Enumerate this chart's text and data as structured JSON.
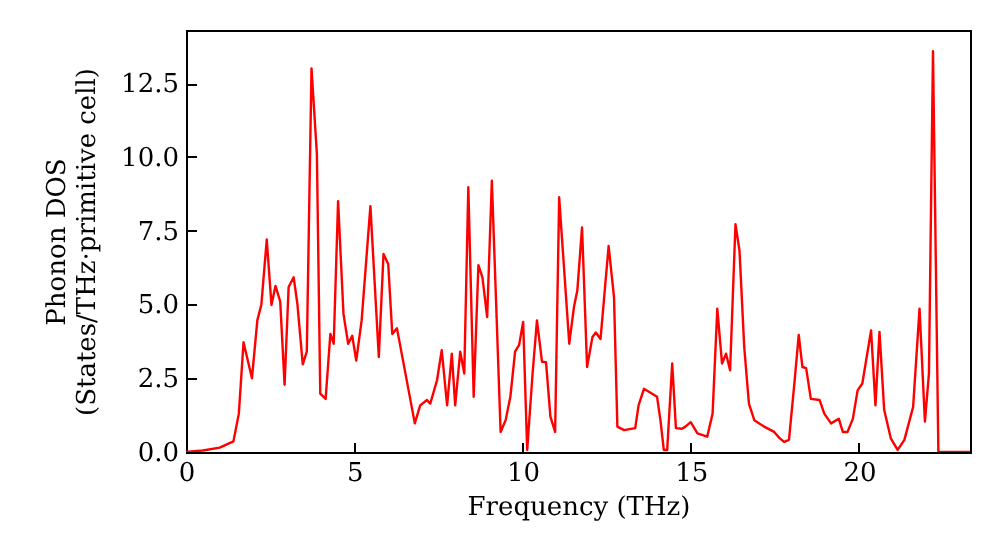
{
  "chart_data": {
    "type": "line",
    "xlabel": "Frequency (THz)",
    "ylabel": "Phonon DOS\n(States/THz·primitive cell)",
    "xlim": [
      0,
      23.3
    ],
    "ylim": [
      0,
      14.3
    ],
    "xticks": [
      0,
      5,
      10,
      15,
      20
    ],
    "yticks": [
      {
        "value": 0,
        "label": "0.0"
      },
      {
        "value": 2.5,
        "label": "2.5"
      },
      {
        "value": 5,
        "label": "5.0"
      },
      {
        "value": 7.5,
        "label": "7.5"
      },
      {
        "value": 10,
        "label": "10.0"
      },
      {
        "value": 12.5,
        "label": "12.5"
      }
    ],
    "grid": false,
    "series": [
      {
        "color": "#ff0000",
        "x": [
          0,
          0.5,
          1.0,
          1.41,
          1.57,
          1.71,
          1.96,
          2.12,
          2.24,
          2.4,
          2.54,
          2.66,
          2.8,
          2.93,
          3.05,
          3.2,
          3.31,
          3.47,
          3.59,
          3.73,
          3.89,
          3.99,
          4.15,
          4.29,
          4.39,
          4.52,
          4.68,
          4.82,
          4.94,
          5.06,
          5.22,
          5.48,
          5.73,
          5.87,
          6.01,
          6.13,
          6.27,
          6.8,
          6.96,
          7.16,
          7.26,
          7.46,
          7.6,
          7.76,
          7.9,
          8.0,
          8.15,
          8.27,
          8.39,
          8.55,
          8.69,
          8.81,
          8.95,
          9.09,
          9.35,
          9.5,
          9.64,
          9.78,
          9.9,
          10.02,
          10.14,
          10.3,
          10.43,
          10.58,
          10.7,
          10.83,
          10.97,
          11.09,
          11.39,
          11.53,
          11.63,
          11.77,
          11.92,
          12.08,
          12.18,
          12.32,
          12.56,
          12.72,
          12.82,
          13.02,
          13.35,
          13.45,
          13.61,
          14.0,
          14.1,
          14.2,
          14.3,
          14.45,
          14.56,
          14.74,
          14.84,
          15.0,
          15.2,
          15.49,
          15.65,
          15.79,
          15.93,
          16.05,
          16.17,
          16.33,
          16.45,
          16.59,
          16.73,
          16.89,
          17.18,
          17.48,
          17.64,
          17.78,
          17.92,
          18.08,
          18.21,
          18.32,
          18.43,
          18.57,
          18.83,
          18.97,
          19.17,
          19.4,
          19.52,
          19.66,
          19.82,
          19.96,
          20.1,
          20.36,
          20.49,
          20.61,
          20.75,
          20.95,
          21.15,
          21.35,
          21.61,
          21.8,
          21.96,
          22.08,
          22.2,
          22.36,
          23.3
        ],
        "values": [
          0,
          0.05,
          0.15,
          0.36,
          1.3,
          3.72,
          2.5,
          4.46,
          5.0,
          7.2,
          4.98,
          5.63,
          5.1,
          2.28,
          5.59,
          5.92,
          5.02,
          2.97,
          3.4,
          13.0,
          10.1,
          1.98,
          1.8,
          4.0,
          3.67,
          8.5,
          4.68,
          3.67,
          3.94,
          3.1,
          4.46,
          8.33,
          3.22,
          6.71,
          6.37,
          4.0,
          4.19,
          0.97,
          1.58,
          1.76,
          1.64,
          2.43,
          3.45,
          1.58,
          3.33,
          1.58,
          3.4,
          2.66,
          8.97,
          1.87,
          6.33,
          5.92,
          4.57,
          9.19,
          0.68,
          1.08,
          1.87,
          3.4,
          3.63,
          4.41,
          0.07,
          2.66,
          4.46,
          3.06,
          3.04,
          1.2,
          0.68,
          8.63,
          3.67,
          4.91,
          5.47,
          7.61,
          2.88,
          3.9,
          4.05,
          3.83,
          6.98,
          5.25,
          0.86,
          0.74,
          0.81,
          1.58,
          2.14,
          1.87,
          1.08,
          0.07,
          0.07,
          3.0,
          0.81,
          0.79,
          0.86,
          1.01,
          0.63,
          0.52,
          1.3,
          4.86,
          3.0,
          3.33,
          2.77,
          7.72,
          6.82,
          3.56,
          1.64,
          1.08,
          0.86,
          0.68,
          0.47,
          0.34,
          0.41,
          2.32,
          3.97,
          2.88,
          2.84,
          1.8,
          1.76,
          1.3,
          0.97,
          1.13,
          0.68,
          0.68,
          1.13,
          2.09,
          2.32,
          4.12,
          1.58,
          4.07,
          1.42,
          0.45,
          0.07,
          0.41,
          1.53,
          4.86,
          1.03,
          2.66,
          13.58,
          0,
          0
        ]
      }
    ]
  }
}
